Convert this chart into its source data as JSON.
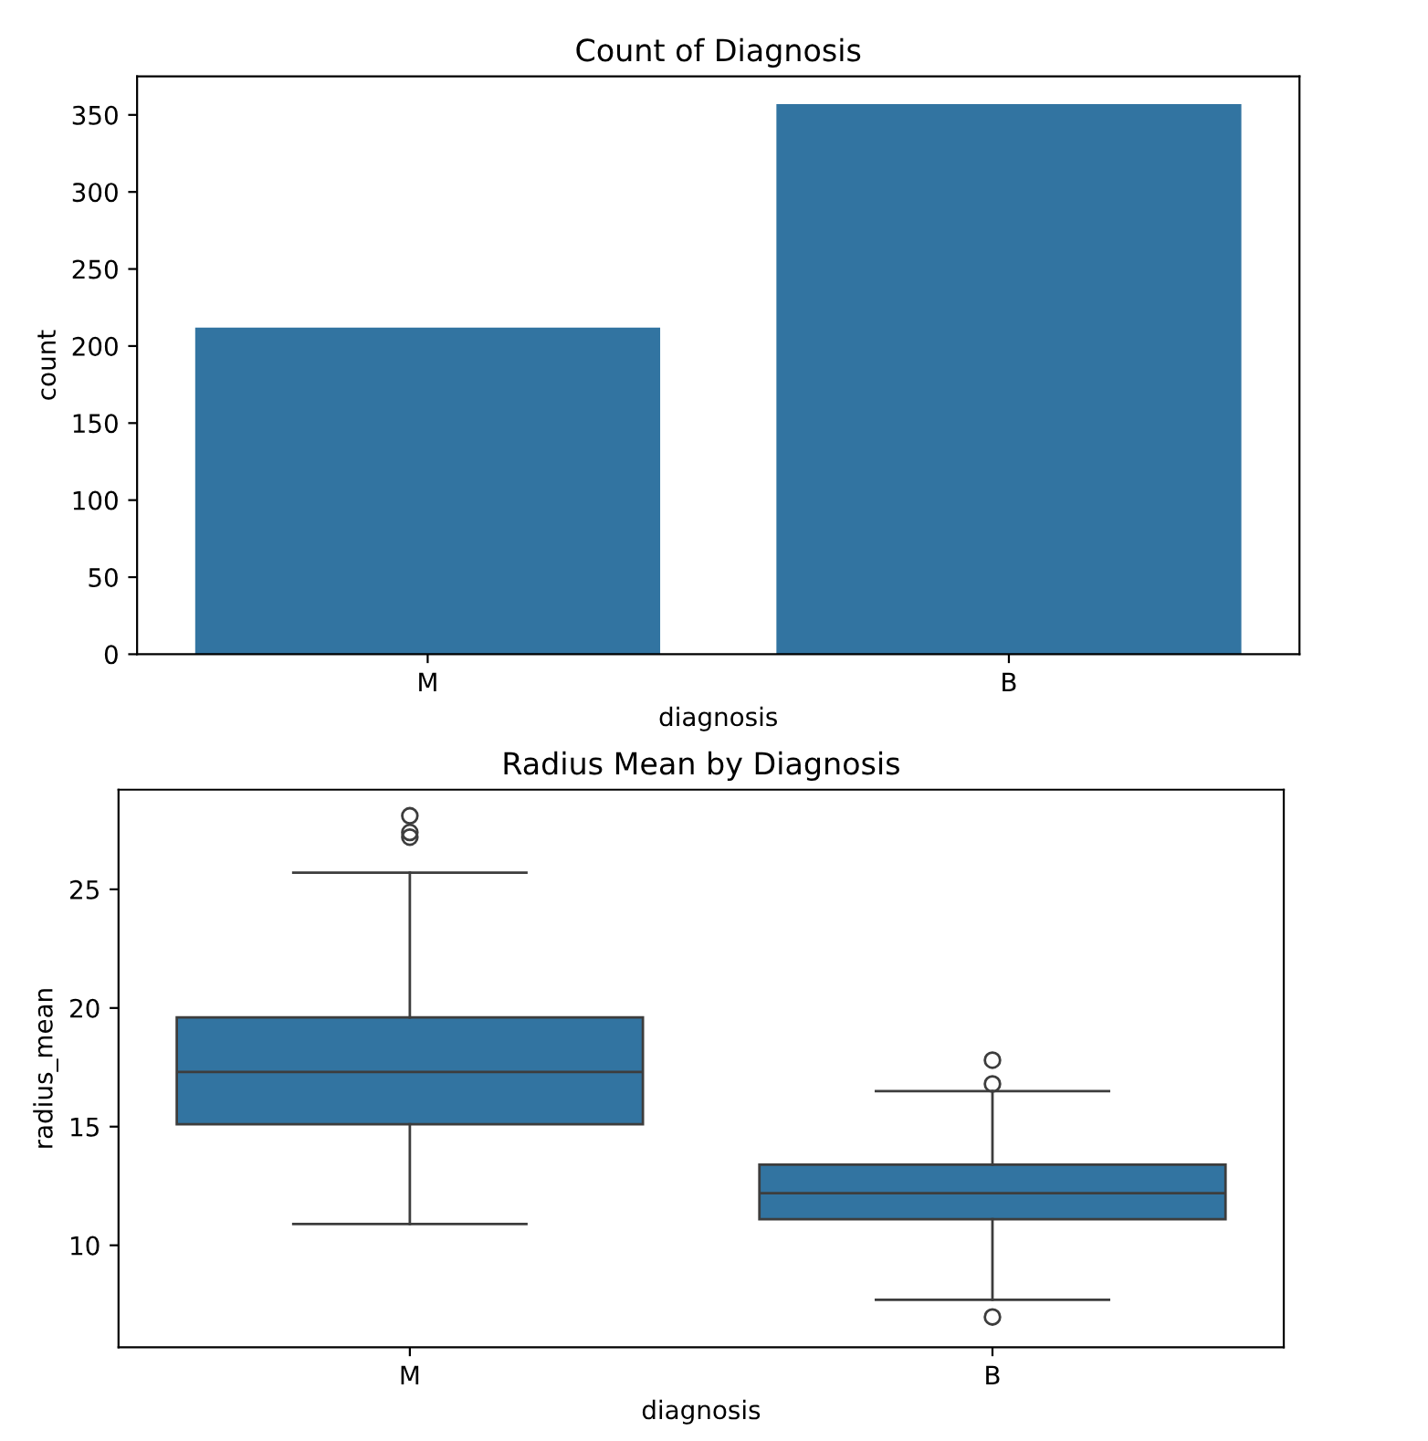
{
  "chart_data": [
    {
      "type": "bar",
      "title": "Count of Diagnosis",
      "xlabel": "diagnosis",
      "ylabel": "count",
      "categories": [
        "M",
        "B"
      ],
      "values": [
        212,
        357
      ],
      "color": "#3274a1",
      "ylim": [
        0,
        375
      ],
      "yticks": [
        0,
        50,
        100,
        150,
        200,
        250,
        300,
        350
      ],
      "grid": false
    },
    {
      "type": "box",
      "title": "Radius Mean by Diagnosis",
      "xlabel": "diagnosis",
      "ylabel": "radius_mean",
      "categories": [
        "M",
        "B"
      ],
      "color": "#3274a1",
      "ylim": [
        5.7,
        29.2
      ],
      "yticks": [
        10,
        15,
        20,
        25
      ],
      "grid": false,
      "boxes": [
        {
          "low": 10.9,
          "q1": 15.1,
          "median": 17.3,
          "q3": 19.6,
          "high": 25.7,
          "outliers": [
            27.2,
            27.4,
            28.1
          ]
        },
        {
          "low": 7.7,
          "q1": 11.1,
          "median": 12.2,
          "q3": 13.4,
          "high": 16.5,
          "outliers": [
            6.98,
            16.8,
            17.8
          ]
        }
      ]
    }
  ]
}
